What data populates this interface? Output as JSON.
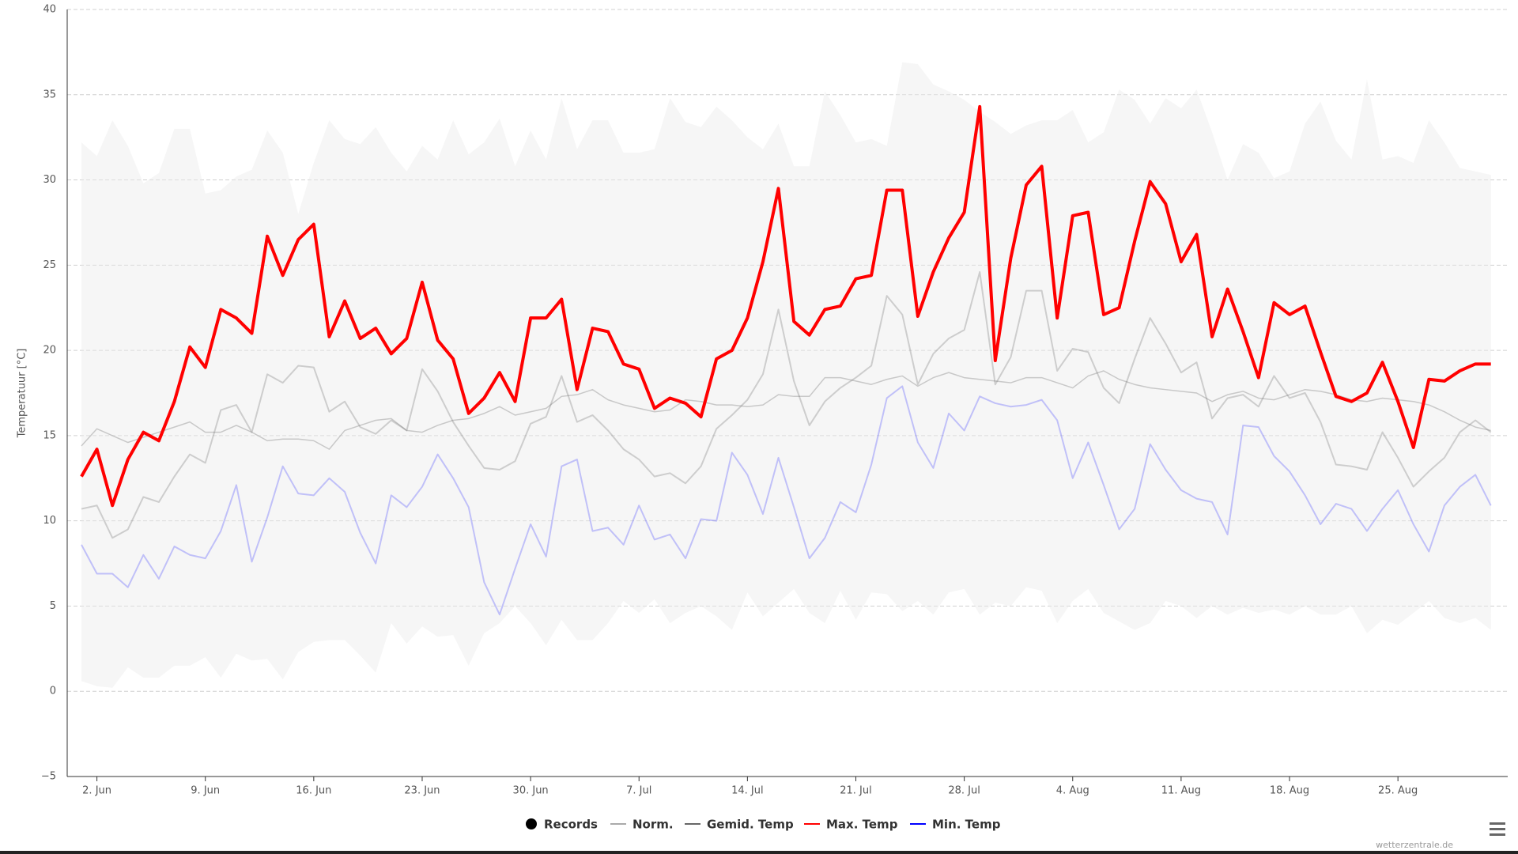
{
  "chart_data": {
    "type": "line",
    "y_label": "Temperatuur [°C]",
    "credit": "wetterzentrale.de",
    "ylim": [
      -5,
      40
    ],
    "yticks": [
      {
        "value": -5,
        "label": "−5"
      },
      0,
      5,
      10,
      15,
      20,
      25,
      30,
      35,
      40
    ],
    "grid": true,
    "legend": "bottom",
    "categories": [
      null,
      "2. Jun",
      null,
      null,
      null,
      null,
      null,
      null,
      "9. Jun",
      null,
      null,
      null,
      null,
      null,
      null,
      "16. Jun",
      null,
      null,
      null,
      null,
      null,
      null,
      "23. Jun",
      null,
      null,
      null,
      null,
      null,
      null,
      "30. Jun",
      null,
      null,
      null,
      null,
      null,
      null,
      "7. Jul",
      null,
      null,
      null,
      null,
      null,
      null,
      "14. Jul",
      null,
      null,
      null,
      null,
      null,
      null,
      "21. Jul",
      null,
      null,
      null,
      null,
      null,
      null,
      "28. Jul",
      null,
      null,
      null,
      null,
      null,
      null,
      "4. Aug",
      null,
      null,
      null,
      null,
      null,
      null,
      "11. Aug",
      null,
      null,
      null,
      null,
      null,
      null,
      "18. Aug",
      null,
      null,
      null,
      null,
      null,
      null,
      "25. Aug",
      null,
      null,
      null,
      null,
      null,
      null
    ],
    "series": [
      {
        "name": "Records",
        "kind": "range",
        "color": "#000000",
        "values": [
          32.2,
          31.4,
          33.5,
          32.0,
          29.8,
          30.4,
          33.0,
          33.0,
          29.2,
          29.4,
          30.2,
          30.6,
          32.9,
          31.6,
          28.0,
          31.0,
          33.5,
          32.4,
          32.1,
          33.1,
          31.6,
          30.5,
          32.0,
          31.2,
          33.5,
          31.5,
          32.2,
          33.6,
          30.8,
          32.9,
          31.2,
          34.8,
          31.8,
          33.5,
          33.5,
          31.6,
          31.6,
          31.8,
          34.8,
          33.4,
          33.1,
          34.3,
          33.5,
          32.5,
          31.8,
          33.3,
          30.8,
          30.8,
          35.2,
          33.8,
          32.2,
          32.4,
          32.0,
          36.9,
          36.8,
          35.6,
          35.2,
          34.7,
          34.0,
          33.4,
          32.7,
          33.2,
          33.5,
          33.5,
          34.1,
          32.2,
          32.8,
          35.3,
          34.7,
          33.3,
          34.8,
          34.2,
          35.3,
          32.8,
          30.0,
          32.1,
          31.6,
          30.1,
          30.5,
          33.3,
          34.6,
          32.3,
          31.2,
          35.9,
          31.2,
          31.4,
          31.0,
          33.5,
          32.2,
          30.7,
          30.5,
          30.3
        ],
        "lows": [
          0.6,
          0.3,
          0.2,
          1.4,
          0.8,
          0.8,
          1.5,
          1.5,
          2.0,
          0.8,
          2.2,
          1.8,
          1.9,
          0.7,
          2.3,
          2.9,
          3.0,
          3.0,
          2.1,
          1.1,
          4.0,
          2.8,
          3.8,
          3.2,
          3.3,
          1.5,
          3.4,
          4.0,
          5.0,
          4.0,
          2.7,
          4.2,
          3.0,
          3.0,
          4.0,
          5.3,
          4.6,
          5.4,
          4.0,
          4.6,
          5.0,
          4.4,
          3.6,
          5.8,
          4.4,
          5.2,
          6.0,
          4.6,
          4.0,
          5.9,
          4.2,
          5.8,
          5.7,
          4.7,
          5.3,
          4.5,
          5.8,
          6.0,
          4.5,
          5.2,
          5.0,
          6.1,
          5.9,
          4.0,
          5.3,
          6.0,
          4.6,
          4.1,
          3.6,
          4.0,
          5.3,
          5.0,
          4.3,
          5.0,
          4.5,
          4.9,
          4.6,
          4.8,
          4.5,
          5.0,
          4.5,
          4.5,
          5.0,
          3.4,
          4.2,
          3.9,
          4.6,
          5.3,
          4.3,
          4.0,
          4.3,
          3.6
        ]
      },
      {
        "name": "Norm.",
        "color": "#aaaaaa",
        "values": [
          14.4,
          15.4,
          15.0,
          14.6,
          14.9,
          15.2,
          15.5,
          15.8,
          15.2,
          15.2,
          15.6,
          15.2,
          14.7,
          14.8,
          14.8,
          14.7,
          14.2,
          15.3,
          15.6,
          15.9,
          16.0,
          15.3,
          15.2,
          15.6,
          15.9,
          16.0,
          16.3,
          16.7,
          16.2,
          16.4,
          16.6,
          17.3,
          17.4,
          17.7,
          17.1,
          16.8,
          16.6,
          16.4,
          16.5,
          17.1,
          17.0,
          16.8,
          16.8,
          16.7,
          16.8,
          17.4,
          17.3,
          17.3,
          18.4,
          18.4,
          18.2,
          18.0,
          18.3,
          18.5,
          17.9,
          18.4,
          18.7,
          18.4,
          18.3,
          18.2,
          18.1,
          18.4,
          18.4,
          18.1,
          17.8,
          18.5,
          18.8,
          18.3,
          18.0,
          17.8,
          17.7,
          17.6,
          17.5,
          17.0,
          17.4,
          17.6,
          17.2,
          17.1,
          17.4,
          17.7,
          17.6,
          17.4,
          17.1,
          17.0,
          17.2,
          17.1,
          17.0,
          16.8,
          16.4,
          15.9,
          15.5,
          15.3
        ]
      },
      {
        "name": "Gemid. Temp",
        "color": "#666666",
        "values": [
          10.7,
          10.9,
          9.0,
          9.5,
          11.4,
          11.1,
          12.6,
          13.9,
          13.4,
          16.5,
          16.8,
          15.2,
          18.6,
          18.1,
          19.1,
          19.0,
          16.4,
          17.0,
          15.5,
          15.1,
          15.9,
          15.3,
          18.9,
          17.6,
          15.8,
          14.4,
          13.1,
          13.0,
          13.5,
          15.7,
          16.1,
          18.5,
          15.8,
          16.2,
          15.3,
          14.2,
          13.6,
          12.6,
          12.8,
          12.2,
          13.2,
          15.4,
          16.2,
          17.1,
          18.6,
          22.4,
          18.2,
          15.6,
          17.0,
          17.8,
          18.4,
          19.1,
          23.2,
          22.1,
          18.0,
          19.8,
          20.7,
          21.2,
          24.6,
          18.0,
          19.6,
          23.5,
          23.5,
          18.8,
          20.1,
          19.9,
          17.8,
          16.9,
          19.5,
          21.9,
          20.4,
          18.7,
          19.3,
          16.0,
          17.2,
          17.4,
          16.7,
          18.5,
          17.2,
          17.5,
          15.8,
          13.3,
          13.2,
          13.0,
          15.2,
          13.7,
          12.0,
          12.9,
          13.7,
          15.2,
          15.9,
          15.2
        ]
      },
      {
        "name": "Max. Temp",
        "color": "#ff0000",
        "values": [
          12.6,
          14.2,
          10.9,
          13.6,
          15.2,
          14.7,
          17.0,
          20.2,
          19.0,
          22.4,
          21.9,
          21.0,
          26.7,
          24.4,
          26.5,
          27.4,
          20.8,
          22.9,
          20.7,
          21.3,
          19.8,
          20.7,
          24.0,
          20.6,
          19.5,
          16.3,
          17.2,
          18.7,
          17.0,
          21.9,
          21.9,
          23.0,
          17.7,
          21.3,
          21.1,
          19.2,
          18.9,
          16.6,
          17.2,
          16.9,
          16.1,
          19.5,
          20.0,
          21.9,
          25.2,
          29.5,
          21.7,
          20.9,
          22.4,
          22.6,
          24.2,
          24.4,
          29.4,
          29.4,
          22.0,
          24.6,
          26.6,
          28.1,
          34.3,
          19.4,
          25.4,
          29.7,
          30.8,
          21.9,
          27.9,
          28.1,
          22.1,
          22.5,
          26.4,
          29.9,
          28.6,
          25.2,
          26.8,
          20.8,
          23.6,
          21.1,
          18.4,
          22.8,
          22.1,
          22.6,
          19.9,
          17.3,
          17.0,
          17.5,
          19.3,
          17.0,
          14.3,
          18.3,
          18.2,
          18.8,
          19.2,
          19.2
        ]
      },
      {
        "name": "Min. Temp",
        "color": "#0000ff",
        "values": [
          8.6,
          6.9,
          6.9,
          6.1,
          8.0,
          6.6,
          8.5,
          8.0,
          7.8,
          9.4,
          12.1,
          7.6,
          10.2,
          13.2,
          11.6,
          11.5,
          12.5,
          11.7,
          9.3,
          7.5,
          11.5,
          10.8,
          12.0,
          13.9,
          12.5,
          10.8,
          6.4,
          4.5,
          7.2,
          9.8,
          7.9,
          13.2,
          13.6,
          9.4,
          9.6,
          8.6,
          10.9,
          8.9,
          9.2,
          7.8,
          10.1,
          10.0,
          14.0,
          12.7,
          10.4,
          13.7,
          10.8,
          7.8,
          9.0,
          11.1,
          10.5,
          13.3,
          17.2,
          17.9,
          14.6,
          13.1,
          16.3,
          15.3,
          17.3,
          16.9,
          16.7,
          16.8,
          17.1,
          15.9,
          12.5,
          14.6,
          12.1,
          9.5,
          10.7,
          14.5,
          13.0,
          11.8,
          11.3,
          11.1,
          9.2,
          15.6,
          15.5,
          13.8,
          12.9,
          11.5,
          9.8,
          11.0,
          10.7,
          9.4,
          10.7,
          11.8,
          9.8,
          8.2,
          10.9,
          12.0,
          12.7,
          10.9
        ]
      }
    ]
  }
}
